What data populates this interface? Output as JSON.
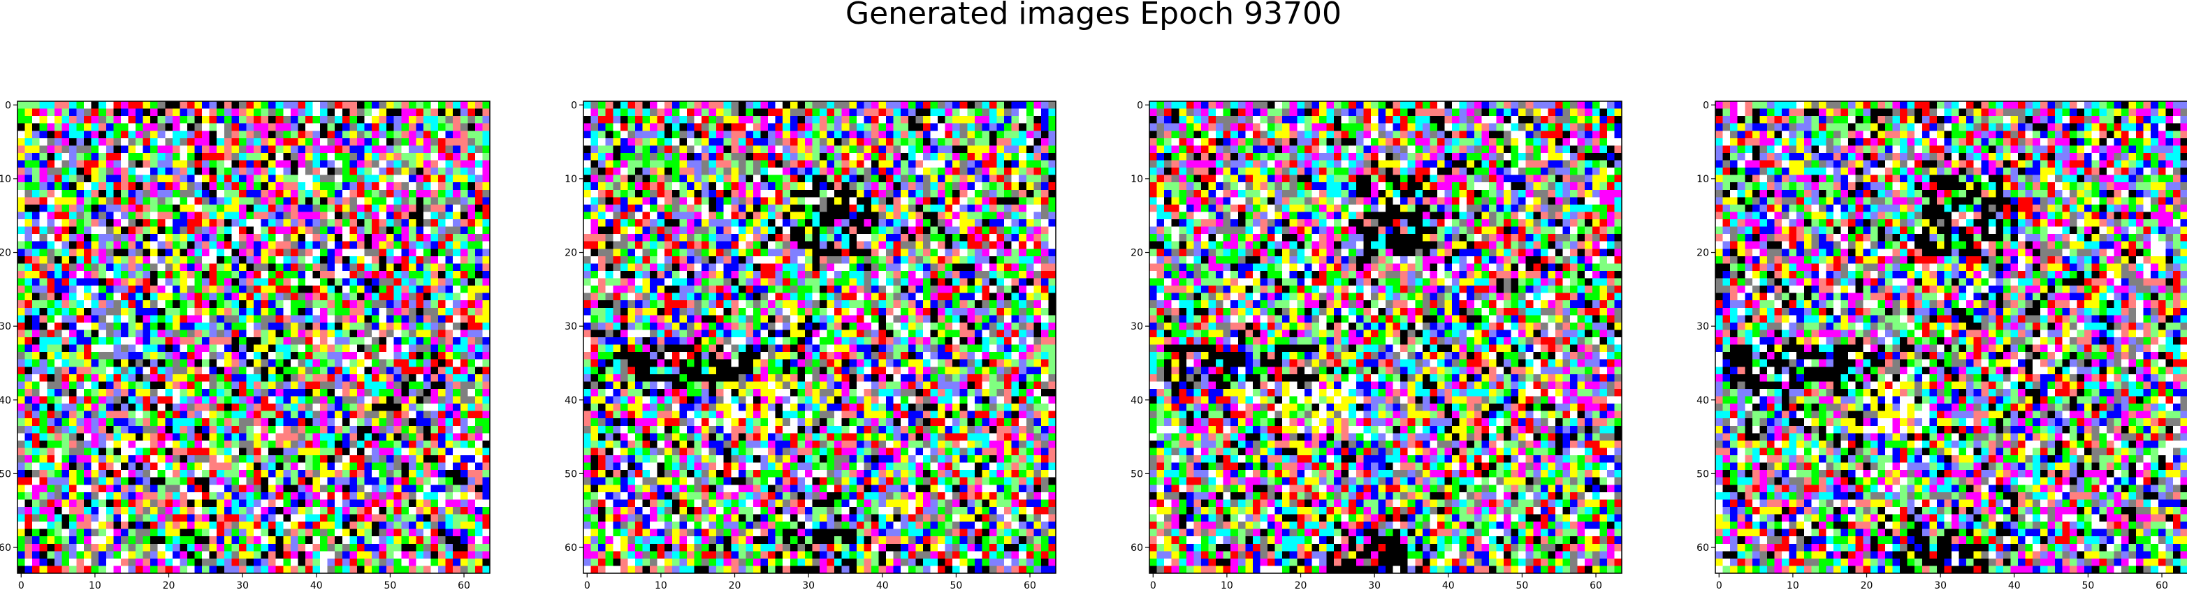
{
  "figure": {
    "title": "Generated images Epoch 93700"
  },
  "chart_data": [
    {
      "type": "heatmap",
      "content": "64x64 RGB image of saturated noise pixels (colors: white, black, red, green, blue, cyan, magenta, yellow)",
      "x_ticks": [
        0,
        10,
        20,
        30,
        40,
        50,
        60
      ],
      "y_ticks": [
        0,
        10,
        20,
        30,
        40,
        50,
        60
      ],
      "xlim": [
        -0.5,
        63.5
      ],
      "ylim": [
        63.5,
        -0.5
      ],
      "grid": false
    },
    {
      "type": "heatmap",
      "content": "64x64 RGB image of saturated noise pixels with dark clusters near rows 10-20 and 33-38",
      "x_ticks": [
        0,
        10,
        20,
        30,
        40,
        50,
        60
      ],
      "y_ticks": [
        0,
        10,
        20,
        30,
        40,
        50,
        60
      ],
      "xlim": [
        -0.5,
        63.5
      ],
      "ylim": [
        63.5,
        -0.5
      ],
      "grid": false
    },
    {
      "type": "heatmap",
      "content": "64x64 RGB image of saturated noise pixels with dark clusters near rows 10-20 and 33-38",
      "x_ticks": [
        0,
        10,
        20,
        30,
        40,
        50,
        60
      ],
      "y_ticks": [
        0,
        10,
        20,
        30,
        40,
        50,
        60
      ],
      "xlim": [
        -0.5,
        63.5
      ],
      "ylim": [
        63.5,
        -0.5
      ],
      "grid": false
    },
    {
      "type": "heatmap",
      "content": "64x64 RGB image of saturated noise pixels with dark clusters near rows 10-20 and 33-38",
      "x_ticks": [
        0,
        10,
        20,
        30,
        40,
        50,
        60
      ],
      "y_ticks": [
        0,
        10,
        20,
        30,
        40,
        50,
        60
      ],
      "xlim": [
        -0.5,
        63.5
      ],
      "ylim": [
        63.5,
        -0.5
      ],
      "grid": false
    }
  ],
  "palette": [
    "#ffffff",
    "#000000",
    "#ff0000",
    "#00ff00",
    "#0000ff",
    "#00ffff",
    "#ff00ff",
    "#ffff00",
    "#808080",
    "#ff8080",
    "#80ff80",
    "#8080ff"
  ]
}
